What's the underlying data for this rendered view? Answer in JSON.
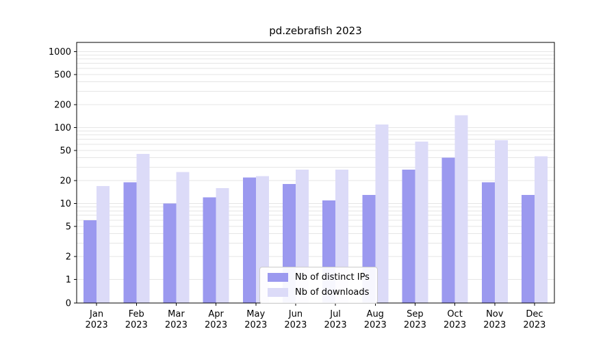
{
  "chart_data": {
    "type": "bar",
    "title": "pd.zebrafish 2023",
    "xlabel": "",
    "ylabel": "",
    "yscale": "symlog",
    "ylim": [
      0,
      1400
    ],
    "yticks": [
      0,
      1,
      2,
      5,
      10,
      20,
      50,
      100,
      200,
      500,
      1000
    ],
    "grid": "horizontal-minor-log",
    "legend_position": "lower center",
    "categories": [
      "Jan 2023",
      "Feb 2023",
      "Mar 2023",
      "Apr 2023",
      "May 2023",
      "Jun 2023",
      "Jul 2023",
      "Aug 2023",
      "Sep 2023",
      "Oct 2023",
      "Nov 2023",
      "Dec 2023"
    ],
    "series": [
      {
        "name": "Nb of distinct IPs",
        "color": "#9b99ef",
        "values": [
          6,
          19,
          10,
          12,
          22,
          18,
          11,
          13,
          28,
          40,
          19,
          13
        ]
      },
      {
        "name": "Nb of downloads",
        "color": "#dcdbf8",
        "values": [
          17,
          45,
          26,
          16,
          23,
          28,
          28,
          110,
          65,
          145,
          68,
          42
        ]
      }
    ],
    "colors": {
      "axis": "#000000",
      "gridline": "#e5e5e5",
      "background": "#ffffff"
    }
  }
}
